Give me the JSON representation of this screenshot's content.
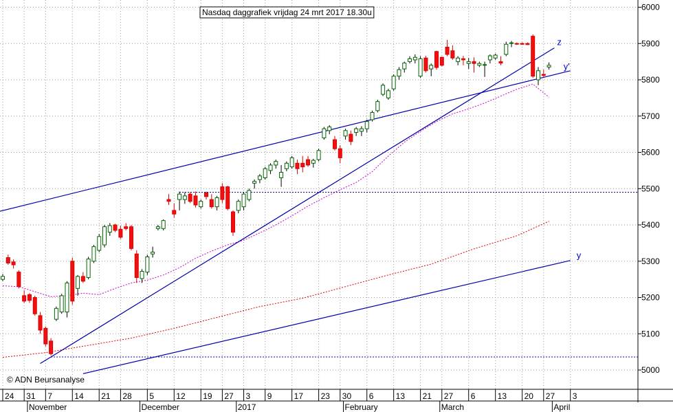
{
  "chart_data": {
    "type": "candlestick",
    "title": "Nasdaq daggrafiek vrijdag 24 mrt 2017 18.30u",
    "copyright": "© ADN Beursanalyse",
    "ylim": [
      4945,
      6025
    ],
    "y_ticks": [
      5000,
      5100,
      5200,
      5300,
      5400,
      5500,
      5600,
      5700,
      5800,
      5900,
      6000
    ],
    "y_tick_labels": [
      "5000",
      "5100",
      "5200",
      "5300",
      "5400",
      "5500",
      "5600",
      "5700",
      "5800",
      "5900",
      "6000"
    ],
    "grid": true,
    "x_day_ticks": [
      {
        "i": 0,
        "label": "24"
      },
      {
        "i": 4,
        "label": "31"
      },
      {
        "i": 8,
        "label": "7"
      },
      {
        "i": 13,
        "label": "14"
      },
      {
        "i": 18,
        "label": "21"
      },
      {
        "i": 22,
        "label": "28"
      },
      {
        "i": 27,
        "label": "5"
      },
      {
        "i": 32,
        "label": "12"
      },
      {
        "i": 37,
        "label": "19"
      },
      {
        "i": 41,
        "label": "27"
      },
      {
        "i": 45,
        "label": "3"
      },
      {
        "i": 49,
        "label": "9"
      },
      {
        "i": 54,
        "label": "17"
      },
      {
        "i": 59,
        "label": "23"
      },
      {
        "i": 63,
        "label": "30"
      },
      {
        "i": 68,
        "label": "6"
      },
      {
        "i": 73,
        "label": "13"
      },
      {
        "i": 78,
        "label": "21"
      },
      {
        "i": 82,
        "label": "27"
      },
      {
        "i": 87,
        "label": "6"
      },
      {
        "i": 92,
        "label": "13"
      },
      {
        "i": 97,
        "label": "20"
      },
      {
        "i": 101,
        "label": "27"
      },
      {
        "i": 106,
        "label": "3"
      }
    ],
    "x_month_ticks": [
      {
        "i": 5,
        "label": "November"
      },
      {
        "i": 26,
        "label": "December"
      },
      {
        "i": 44,
        "label": "2017"
      },
      {
        "i": 64,
        "label": "February"
      },
      {
        "i": 82,
        "label": "March"
      },
      {
        "i": 103,
        "label": "April"
      }
    ],
    "candles": [
      [
        5250,
        5265,
        5245,
        5258
      ],
      [
        5310,
        5318,
        5290,
        5295
      ],
      [
        5298,
        5305,
        5280,
        5290
      ],
      [
        5270,
        5275,
        5225,
        5230
      ],
      [
        5205,
        5220,
        5185,
        5190
      ],
      [
        5208,
        5212,
        5185,
        5192
      ],
      [
        5200,
        5205,
        5150,
        5155
      ],
      [
        5150,
        5160,
        5100,
        5110
      ],
      [
        5115,
        5120,
        5065,
        5072
      ],
      [
        5080,
        5088,
        5040,
        5045
      ],
      [
        5140,
        5175,
        5135,
        5170
      ],
      [
        5160,
        5210,
        5155,
        5205
      ],
      [
        5160,
        5245,
        5145,
        5240
      ],
      [
        5300,
        5310,
        5180,
        5190
      ],
      [
        5225,
        5262,
        5205,
        5258
      ],
      [
        5258,
        5270,
        5240,
        5245
      ],
      [
        5255,
        5312,
        5250,
        5306
      ],
      [
        5300,
        5345,
        5295,
        5340
      ],
      [
        5330,
        5375,
        5325,
        5368
      ],
      [
        5345,
        5400,
        5338,
        5395
      ],
      [
        5380,
        5405,
        5370,
        5398
      ],
      [
        5400,
        5403,
        5380,
        5385
      ],
      [
        5388,
        5398,
        5362,
        5366
      ],
      [
        5395,
        5405,
        5385,
        5390
      ],
      [
        5395,
        5400,
        5330,
        5335
      ],
      [
        5320,
        5330,
        5240,
        5255
      ],
      [
        5252,
        5278,
        5240,
        5272
      ],
      [
        5270,
        5318,
        5262,
        5312
      ],
      [
        5320,
        5340,
        5310,
        5325
      ],
      [
        5390,
        5400,
        5385,
        5395
      ],
      [
        5390,
        5415,
        5385,
        5412
      ],
      [
        5470,
        5485,
        5455,
        5465
      ],
      [
        5440,
        5460,
        5420,
        5430
      ],
      [
        5470,
        5492,
        5440,
        5485
      ],
      [
        5470,
        5490,
        5458,
        5480
      ],
      [
        5485,
        5490,
        5460,
        5465
      ],
      [
        5480,
        5492,
        5448,
        5455
      ],
      [
        5450,
        5470,
        5445,
        5465
      ],
      [
        5488,
        5492,
        5470,
        5478
      ],
      [
        5470,
        5485,
        5445,
        5450
      ],
      [
        5450,
        5480,
        5440,
        5475
      ],
      [
        5505,
        5515,
        5460,
        5470
      ],
      [
        5505,
        5508,
        5440,
        5445
      ],
      [
        5436,
        5440,
        5370,
        5380
      ],
      [
        5440,
        5470,
        5432,
        5465
      ],
      [
        5450,
        5490,
        5440,
        5485
      ],
      [
        5470,
        5500,
        5465,
        5495
      ],
      [
        5515,
        5525,
        5500,
        5520
      ],
      [
        5525,
        5540,
        5515,
        5535
      ],
      [
        5530,
        5560,
        5525,
        5555
      ],
      [
        5550,
        5570,
        5540,
        5565
      ],
      [
        5565,
        5580,
        5555,
        5575
      ],
      [
        5530,
        5565,
        5505,
        5545
      ],
      [
        5555,
        5575,
        5548,
        5570
      ],
      [
        5560,
        5590,
        5555,
        5585
      ],
      [
        5570,
        5580,
        5540,
        5555
      ],
      [
        5570,
        5590,
        5545,
        5560
      ],
      [
        5580,
        5590,
        5560,
        5565
      ],
      [
        5570,
        5582,
        5558,
        5578
      ],
      [
        5580,
        5610,
        5575,
        5605
      ],
      [
        5640,
        5670,
        5635,
        5665
      ],
      [
        5660,
        5675,
        5650,
        5670
      ],
      [
        5635,
        5645,
        5605,
        5610
      ],
      [
        5610,
        5620,
        5570,
        5585
      ],
      [
        5645,
        5665,
        5635,
        5660
      ],
      [
        5650,
        5660,
        5620,
        5630
      ],
      [
        5655,
        5670,
        5645,
        5665
      ],
      [
        5658,
        5672,
        5645,
        5665
      ],
      [
        5665,
        5690,
        5655,
        5685
      ],
      [
        5690,
        5715,
        5685,
        5710
      ],
      [
        5715,
        5745,
        5710,
        5740
      ],
      [
        5760,
        5790,
        5755,
        5785
      ],
      [
        5750,
        5775,
        5745,
        5770
      ],
      [
        5775,
        5815,
        5770,
        5810
      ],
      [
        5810,
        5835,
        5800,
        5828
      ],
      [
        5830,
        5850,
        5820,
        5846
      ],
      [
        5850,
        5865,
        5845,
        5858
      ],
      [
        5855,
        5870,
        5845,
        5862
      ],
      [
        5810,
        5865,
        5805,
        5858
      ],
      [
        5860,
        5866,
        5820,
        5825
      ],
      [
        5830,
        5845,
        5810,
        5840
      ],
      [
        5878,
        5880,
        5828,
        5834
      ],
      [
        5862,
        5864,
        5837,
        5840
      ],
      [
        5890,
        5910,
        5865,
        5870
      ],
      [
        5880,
        5895,
        5855,
        5860
      ],
      [
        5850,
        5865,
        5840,
        5860
      ],
      [
        5858,
        5866,
        5840,
        5855
      ],
      [
        5845,
        5860,
        5830,
        5850
      ],
      [
        5850,
        5862,
        5820,
        5845
      ],
      [
        5840,
        5850,
        5835,
        5845
      ],
      [
        5840,
        5850,
        5808,
        5842
      ],
      [
        5855,
        5870,
        5845,
        5866
      ],
      [
        5860,
        5872,
        5855,
        5868
      ],
      [
        5850,
        5865,
        5840,
        5846
      ],
      [
        5870,
        5905,
        5865,
        5898
      ],
      [
        5900,
        5907,
        5890,
        5902
      ],
      [
        5900,
        5903,
        5896,
        5899
      ],
      [
        5900,
        5903,
        5896,
        5898
      ],
      [
        5900,
        5903,
        5896,
        5897
      ],
      [
        5920,
        5925,
        5805,
        5810
      ],
      [
        5800,
        5835,
        5785,
        5825
      ],
      [
        5815,
        5828,
        5808,
        5812
      ],
      [
        5835,
        5848,
        5828,
        5840
      ]
    ],
    "ma_short": [
      [
        0,
        5232
      ],
      [
        3,
        5230
      ],
      [
        6,
        5216
      ],
      [
        9,
        5202
      ],
      [
        12,
        5205
      ],
      [
        15,
        5212
      ],
      [
        18,
        5208
      ],
      [
        21,
        5225
      ],
      [
        24,
        5240
      ],
      [
        27,
        5248
      ],
      [
        30,
        5262
      ],
      [
        33,
        5282
      ],
      [
        36,
        5308
      ],
      [
        39,
        5328
      ],
      [
        42,
        5345
      ],
      [
        45,
        5358
      ],
      [
        48,
        5378
      ],
      [
        51,
        5400
      ],
      [
        54,
        5425
      ],
      [
        57,
        5452
      ],
      [
        60,
        5475
      ],
      [
        63,
        5497
      ],
      [
        66,
        5517
      ],
      [
        69,
        5547
      ],
      [
        72,
        5590
      ],
      [
        75,
        5628
      ],
      [
        78,
        5658
      ],
      [
        81,
        5685
      ],
      [
        84,
        5706
      ],
      [
        87,
        5720
      ],
      [
        90,
        5736
      ],
      [
        93,
        5755
      ],
      [
        96,
        5774
      ],
      [
        99,
        5788
      ],
      [
        102,
        5752
      ]
    ],
    "ma_long": [
      [
        0,
        5035
      ],
      [
        8,
        5048
      ],
      [
        16,
        5068
      ],
      [
        24,
        5088
      ],
      [
        32,
        5115
      ],
      [
        40,
        5145
      ],
      [
        48,
        5175
      ],
      [
        56,
        5198
      ],
      [
        64,
        5230
      ],
      [
        72,
        5262
      ],
      [
        80,
        5292
      ],
      [
        88,
        5334
      ],
      [
        96,
        5370
      ],
      [
        102,
        5410
      ]
    ],
    "trend_lines": [
      {
        "name": "z",
        "from": [
          7,
          5018
        ],
        "to": [
          103,
          5888
        ]
      },
      {
        "name": "y'",
        "from": [
          -1,
          5436
        ],
        "to": [
          106,
          5825
        ]
      },
      {
        "name": "y",
        "from": [
          15,
          4990
        ],
        "to": [
          106,
          5302
        ]
      }
    ],
    "horizontal_levels": [
      5490,
      5036
    ],
    "horizontal_level_ranges": [
      [
        33,
        120
      ],
      [
        9,
        120
      ]
    ]
  }
}
